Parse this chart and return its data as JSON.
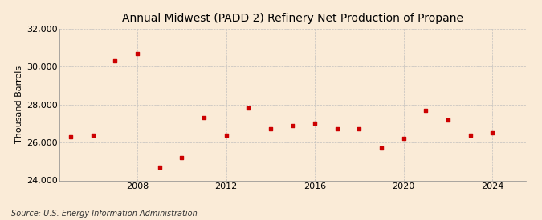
{
  "title": "Annual Midwest (PADD 2) Refinery Net Production of Propane",
  "ylabel": "Thousand Barrels",
  "source": "Source: U.S. Energy Information Administration",
  "background_color": "#faebd7",
  "marker_color": "#cc0000",
  "years": [
    2005,
    2006,
    2007,
    2008,
    2009,
    2010,
    2011,
    2012,
    2013,
    2014,
    2015,
    2016,
    2017,
    2018,
    2019,
    2020,
    2021,
    2022,
    2023,
    2024
  ],
  "values": [
    26300,
    26400,
    30300,
    30700,
    24700,
    25200,
    27300,
    26400,
    27800,
    26700,
    26900,
    27000,
    26700,
    26700,
    25700,
    26200,
    27700,
    27200,
    26400,
    26500
  ],
  "ylim": [
    24000,
    32000
  ],
  "yticks": [
    24000,
    26000,
    28000,
    30000,
    32000
  ],
  "xticks": [
    2008,
    2012,
    2016,
    2020,
    2024
  ],
  "xlim": [
    2004.5,
    2025.5
  ],
  "grid_color": "#bbbbbb",
  "title_fontsize": 10,
  "label_fontsize": 8,
  "tick_fontsize": 8,
  "source_fontsize": 7
}
